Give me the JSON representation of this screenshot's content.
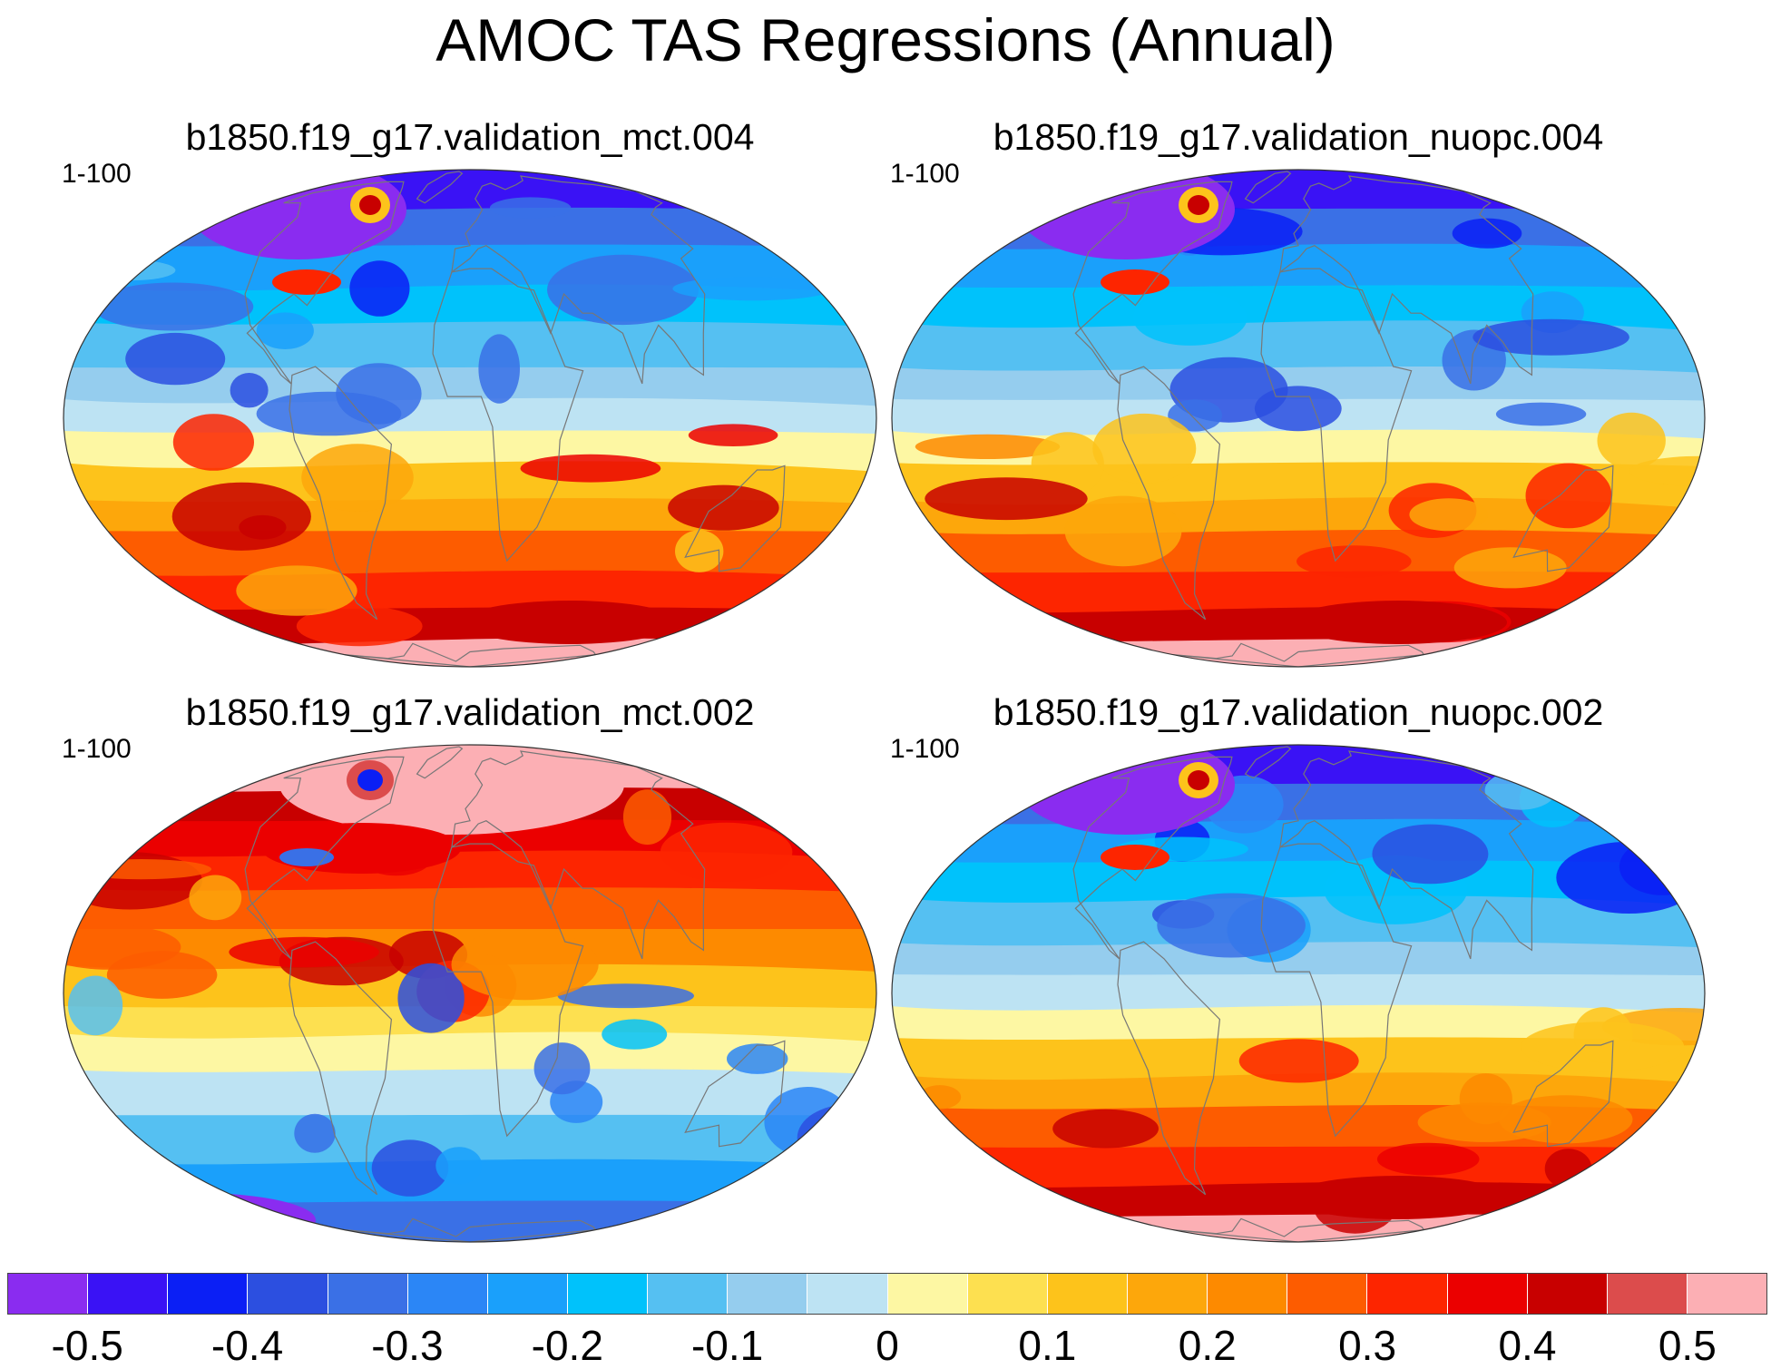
{
  "title": "AMOC TAS Regressions (Annual)",
  "panels": [
    {
      "title": "b1850.f19_g17.validation_mct.004",
      "range": "1-100",
      "pattern": "north_cold_south_warm"
    },
    {
      "title": "b1850.f19_g17.validation_nuopc.004",
      "range": "1-100",
      "pattern": "north_cold_south_warm"
    },
    {
      "title": "b1850.f19_g17.validation_mct.002",
      "range": "1-100",
      "pattern": "north_warm_south_cold"
    },
    {
      "title": "b1850.f19_g17.validation_nuopc.002",
      "range": "1-100",
      "pattern": "north_cold_south_warm"
    }
  ],
  "colorbar": {
    "colors": [
      "#8a2cf0",
      "#3a12f5",
      "#0b1ff5",
      "#2c4fe0",
      "#3a70e6",
      "#2b86f6",
      "#1aa0fb",
      "#00c2fb",
      "#55c0f2",
      "#95cdee",
      "#bde3f3",
      "#fdf7a3",
      "#fde050",
      "#fdc31b",
      "#fda70b",
      "#fd8a00",
      "#fd5c00",
      "#fd2500",
      "#eb0000",
      "#c80000",
      "#dc4c4c",
      "#fcafb4"
    ],
    "tick_labels": [
      "-0.5",
      "-0.4",
      "-0.3",
      "-0.2",
      "-0.1",
      "0",
      "0.1",
      "0.2",
      "0.3",
      "0.4",
      "0.5"
    ]
  }
}
